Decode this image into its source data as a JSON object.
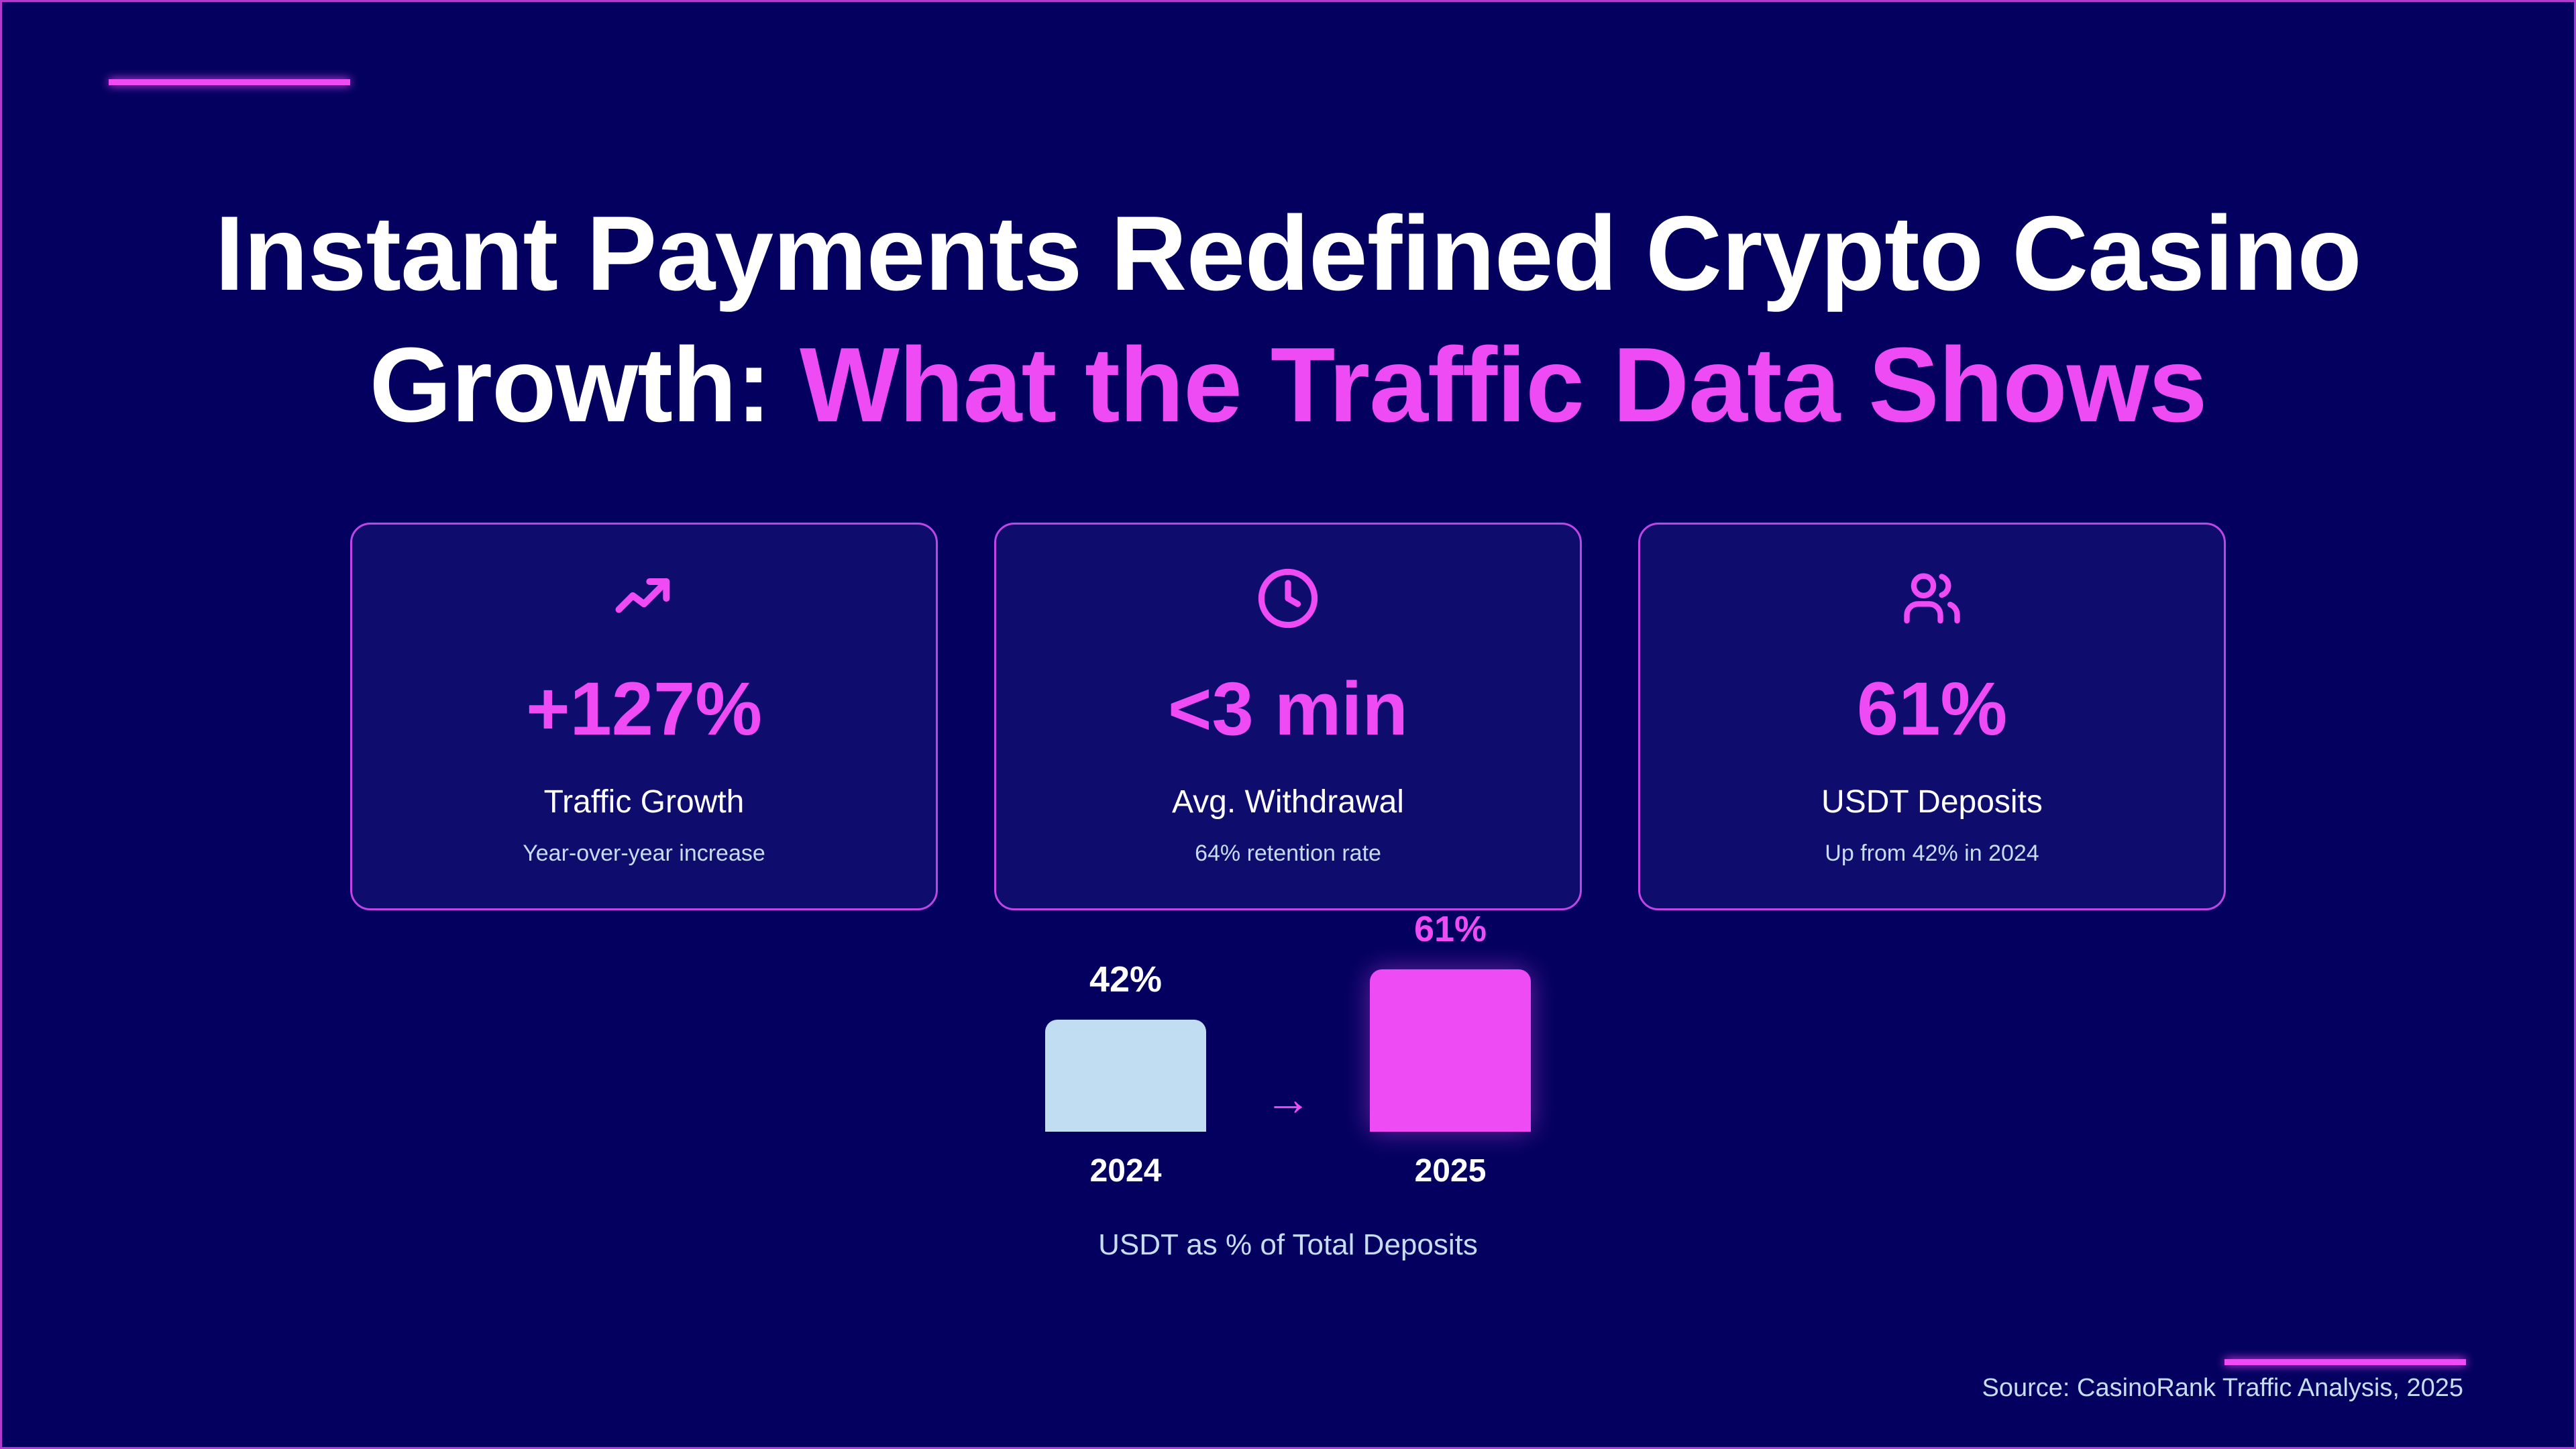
{
  "title": {
    "line1": "Instant Payments Redefined Crypto Casino",
    "line2_plain": "Growth: ",
    "line2_highlight": "What the Traffic Data Shows"
  },
  "colors": {
    "background": "#03005f",
    "card": "#0e0d6e",
    "accent": "#ef4bf5",
    "light": "#c0ddf2"
  },
  "cards": [
    {
      "icon": "trending-up-icon",
      "value": "+127%",
      "label": "Traffic Growth",
      "sub": "Year-over-year increase"
    },
    {
      "icon": "clock-icon",
      "value": "<3 min",
      "label": "Avg. Withdrawal",
      "sub": "64% retention rate"
    },
    {
      "icon": "users-icon",
      "value": "61%",
      "label": "USDT Deposits",
      "sub": "Up from 42% in 2024"
    }
  ],
  "chart_data": {
    "type": "bar",
    "categories": [
      "2024",
      "2025"
    ],
    "values": [
      42,
      61
    ],
    "data_labels": [
      "42%",
      "61%"
    ],
    "xlabel": "USDT as % of Total Deposits",
    "arrow": "→",
    "colors": [
      "#c0ddf2",
      "#ef4bf5"
    ]
  },
  "source": "Source: CasinoRank Traffic Analysis, 2025"
}
